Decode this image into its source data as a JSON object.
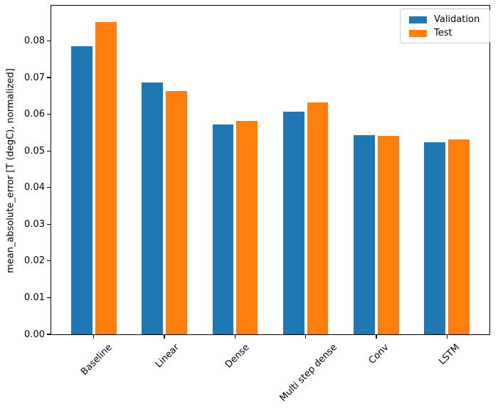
{
  "figure": {
    "background": "#ffffff",
    "spine_color": "#000000",
    "title": ""
  },
  "chart_data": {
    "type": "bar",
    "title": "",
    "xlabel": "",
    "ylabel": "mean_absolute_error [T (degC), normalized]",
    "categories": [
      "Baseline",
      "Linear",
      "Dense",
      "Multi step dense",
      "Conv",
      "LSTM"
    ],
    "series": [
      {
        "name": "Validation",
        "color": "#1f77b4",
        "values": [
          0.0785,
          0.0687,
          0.0572,
          0.0607,
          0.0544,
          0.0523
        ]
      },
      {
        "name": "Test",
        "color": "#ff7f0e",
        "values": [
          0.0852,
          0.0663,
          0.0582,
          0.0633,
          0.0541,
          0.0532
        ]
      }
    ],
    "ylim": [
      0,
      0.0896
    ],
    "yticks": {
      "values": [
        0.0,
        0.01,
        0.02,
        0.03,
        0.04,
        0.05,
        0.06,
        0.07,
        0.08
      ],
      "labels": [
        "0.00",
        "0.01",
        "0.02",
        "0.03",
        "0.04",
        "0.05",
        "0.06",
        "0.07",
        "0.08"
      ]
    },
    "bar_width": 0.3,
    "bar_offsets": [
      -0.17,
      0.17
    ],
    "x_tick_rotation": 45,
    "grid": false,
    "legend_position": "upper right"
  }
}
